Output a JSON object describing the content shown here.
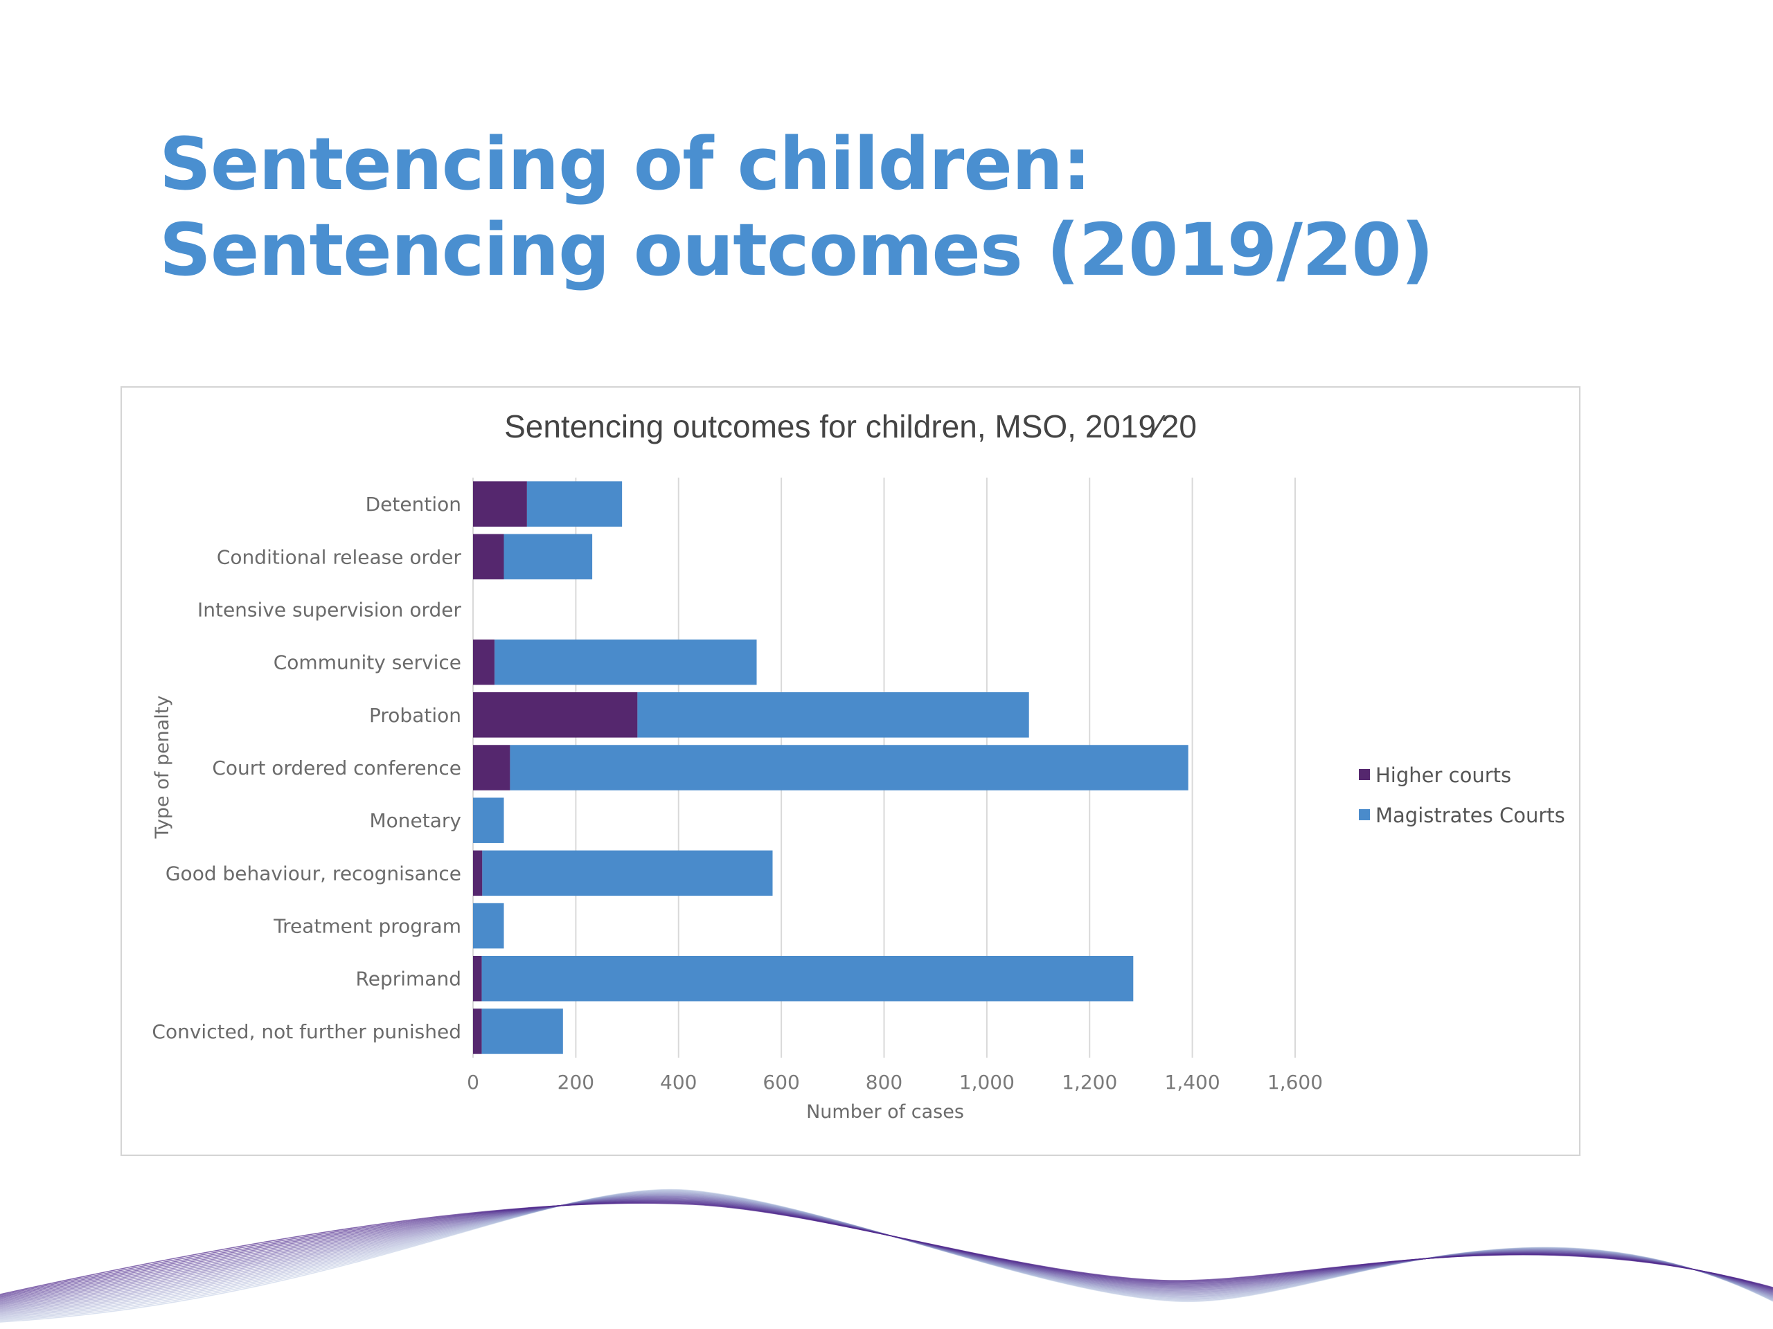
{
  "slide": {
    "title": "Sentencing of children: Sentencing outcomes (2019/20)"
  },
  "colors": {
    "title": "#4a8fd0",
    "higher_courts": "#55276e",
    "magistrates_courts": "#4a8bcb",
    "gridline": "#d9d9d9"
  },
  "chart_data": {
    "type": "bar",
    "orientation": "horizontal",
    "stacked": true,
    "title": "Sentencing outcomes for children, MSO, 2019⁄20",
    "xlabel": "Number of cases",
    "ylabel": "Type of penalty",
    "xlim": [
      0,
      1600
    ],
    "x_ticks": [
      0,
      200,
      400,
      600,
      800,
      1000,
      1200,
      1400,
      1600
    ],
    "x_tick_labels": [
      "0",
      "200",
      "400",
      "600",
      "800",
      "1,000",
      "1,200",
      "1,400",
      "1,600"
    ],
    "grid": true,
    "legend_position": "right",
    "categories": [
      "Detention",
      "Conditional release order",
      "Intensive supervision order",
      "Community service",
      "Probation",
      "Court ordered conference",
      "Monetary",
      "Good behaviour, recognisance",
      "Treatment program",
      "Reprimand",
      "Convicted, not further punished"
    ],
    "series": [
      {
        "name": "Higher courts",
        "color": "#55276e",
        "values": [
          105,
          60,
          0,
          42,
          320,
          72,
          0,
          18,
          0,
          17,
          17
        ]
      },
      {
        "name": "Magistrates Courts",
        "color": "#4a8bcb",
        "values": [
          185,
          172,
          0,
          510,
          762,
          1320,
          60,
          565,
          60,
          1268,
          158
        ]
      }
    ]
  }
}
